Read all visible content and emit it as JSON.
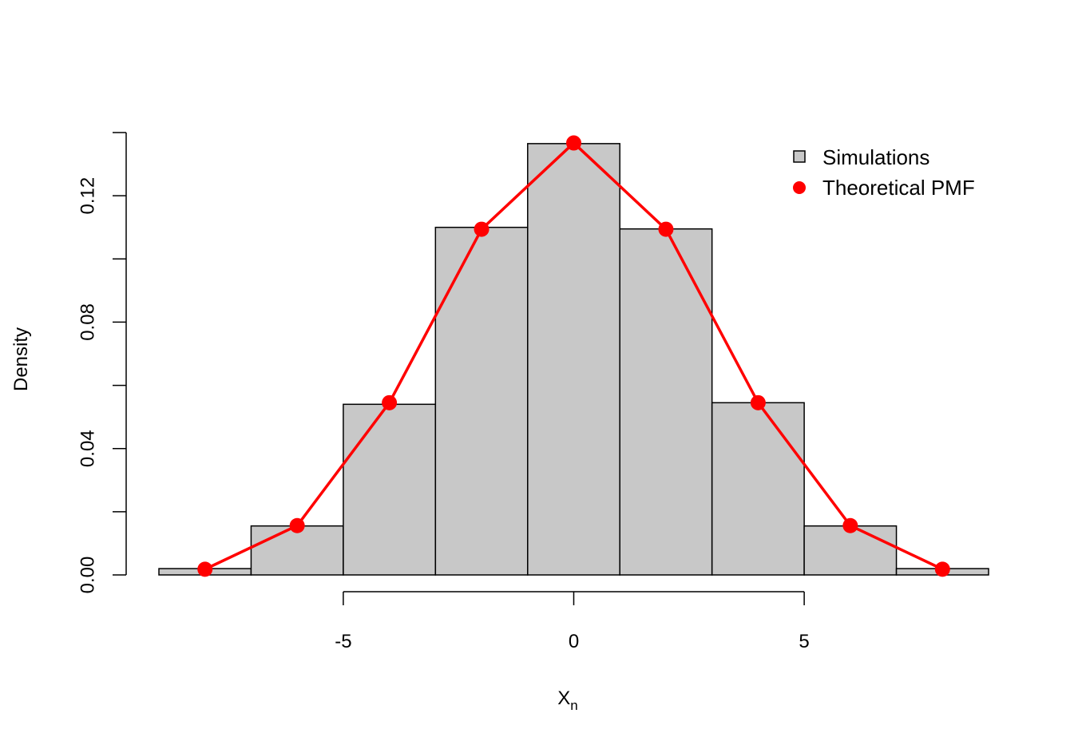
{
  "chart_data": {
    "type": "bar",
    "title": "",
    "xlabel": "X",
    "xlabel_subscript": "n",
    "ylabel": "Density",
    "xlim": [
      -9,
      9
    ],
    "ylim": [
      0,
      0.14
    ],
    "x_ticks": [
      -5,
      0,
      5
    ],
    "x_tick_labels": [
      "-5",
      "0",
      "5"
    ],
    "y_ticks": [
      0,
      0.02,
      0.04,
      0.06,
      0.08,
      0.1,
      0.12,
      0.14
    ],
    "y_tick_labels": [
      "0.00",
      "",
      "0.04",
      "",
      "0.08",
      "",
      "0.12",
      ""
    ],
    "grid": false,
    "legend_position": "top-right",
    "series": [
      {
        "name": "Simulations",
        "type": "histogram",
        "fill": "#c8c8c8",
        "stroke": "#000000",
        "bins": [
          {
            "x0": -9,
            "x1": -7,
            "value": 0.002
          },
          {
            "x0": -7,
            "x1": -5,
            "value": 0.0155
          },
          {
            "x0": -5,
            "x1": -3,
            "value": 0.054
          },
          {
            "x0": -3,
            "x1": -1,
            "value": 0.11
          },
          {
            "x0": -1,
            "x1": 1,
            "value": 0.1365
          },
          {
            "x0": 1,
            "x1": 3,
            "value": 0.1095
          },
          {
            "x0": 3,
            "x1": 5,
            "value": 0.0545
          },
          {
            "x0": 5,
            "x1": 7,
            "value": 0.0155
          },
          {
            "x0": 7,
            "x1": 9,
            "value": 0.002
          }
        ]
      },
      {
        "name": "Theoretical PMF",
        "type": "line",
        "color": "#ff0000",
        "x": [
          -8,
          -6,
          -4,
          -2,
          0,
          2,
          4,
          6,
          8
        ],
        "y": [
          0.0018,
          0.0156,
          0.0545,
          0.1094,
          0.1367,
          0.1094,
          0.0545,
          0.0156,
          0.0018
        ]
      }
    ]
  }
}
